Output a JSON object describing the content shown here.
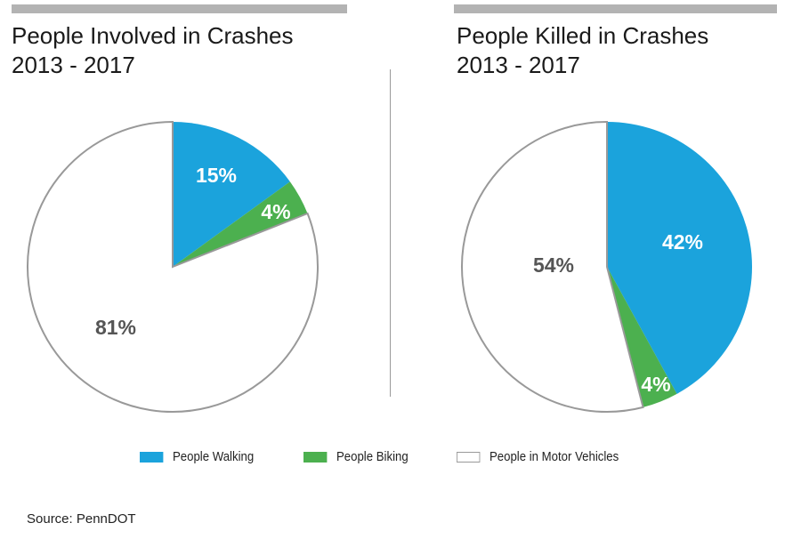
{
  "chart_data": [
    {
      "type": "pie",
      "title": "People Involved in Crashes",
      "subtitle": "2013 - 2017",
      "slices": [
        {
          "label": "People Walking",
          "value": 15,
          "display": "15%"
        },
        {
          "label": "People Biking",
          "value": 4,
          "display": "4%"
        },
        {
          "label": "People in Motor Vehicles",
          "value": 81,
          "display": "81%"
        }
      ]
    },
    {
      "type": "pie",
      "title": "People Killed in Crashes",
      "subtitle": "2013 - 2017",
      "slices": [
        {
          "label": "People Walking",
          "value": 42,
          "display": "42%"
        },
        {
          "label": "People Biking",
          "value": 4,
          "display": "4%"
        },
        {
          "label": "People in Motor Vehicles",
          "value": 54,
          "display": "54%"
        }
      ]
    }
  ],
  "legend": [
    {
      "label": "People Walking",
      "color": "#1ba3dc"
    },
    {
      "label": "People Biking",
      "color": "#4cb04f"
    },
    {
      "label": "People in Motor Vehicles",
      "color": "#ffffff"
    }
  ],
  "source": "Source: PennDOT"
}
